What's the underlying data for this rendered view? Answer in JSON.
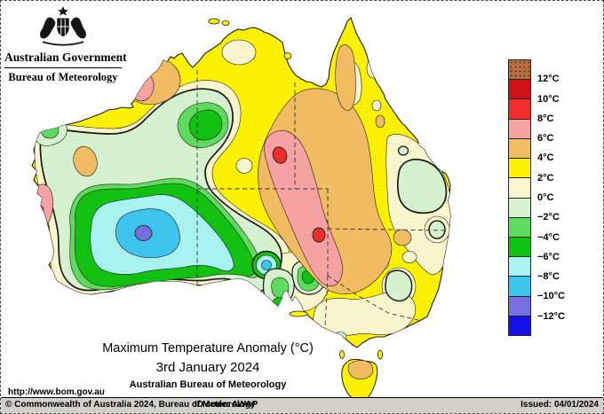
{
  "header": {
    "government": "Australian Government",
    "bureau": "Bureau of Meteorology"
  },
  "title": {
    "line1": "Maximum Temperature Anomaly (°C)",
    "line2": "3rd January 2024",
    "line3": "Australian Bureau of Meteorology"
  },
  "url": "http://www.bom.gov.au",
  "footer": {
    "copyright": "© Commonwealth of Australia 2024, Bureau of Meteorology",
    "id_code": "ID code: AWAP",
    "issued": "Issued: 04/01/2024"
  },
  "legend": {
    "colors": [
      "#AC7442",
      "#CF1217",
      "#F02E2E",
      "#F7A3A3",
      "#F2BC63",
      "#FFF200",
      "#FAF7CE",
      "#D6F2CF",
      "#5FDC5F",
      "#11C211",
      "#A8F3F0",
      "#3DC5EE",
      "#7470E0",
      "#1313E8"
    ],
    "labels": [
      "12°C",
      "10°C",
      "8°C",
      "6°C",
      "4°C",
      "2°C",
      "0°C",
      "−2°C",
      "−4°C",
      "−6°C",
      "−8°C",
      "−10°C",
      "−12°C"
    ]
  },
  "palette": {
    "brown": "#AC7442",
    "darkred": "#CF1217",
    "red": "#F02E2E",
    "pink": "#F7A3A3",
    "orange": "#F2BC63",
    "yellow": "#FFF200",
    "cream": "#FAF7CE",
    "palegreen": "#D6F2CF",
    "lightgreen": "#5FDC5F",
    "green": "#11C211",
    "lightcyan": "#A8F3F0",
    "cyan": "#3DC5EE",
    "violet": "#7470E0",
    "blue": "#1313E8",
    "border_dash": "#333333",
    "contour": "#1b1b1b"
  }
}
